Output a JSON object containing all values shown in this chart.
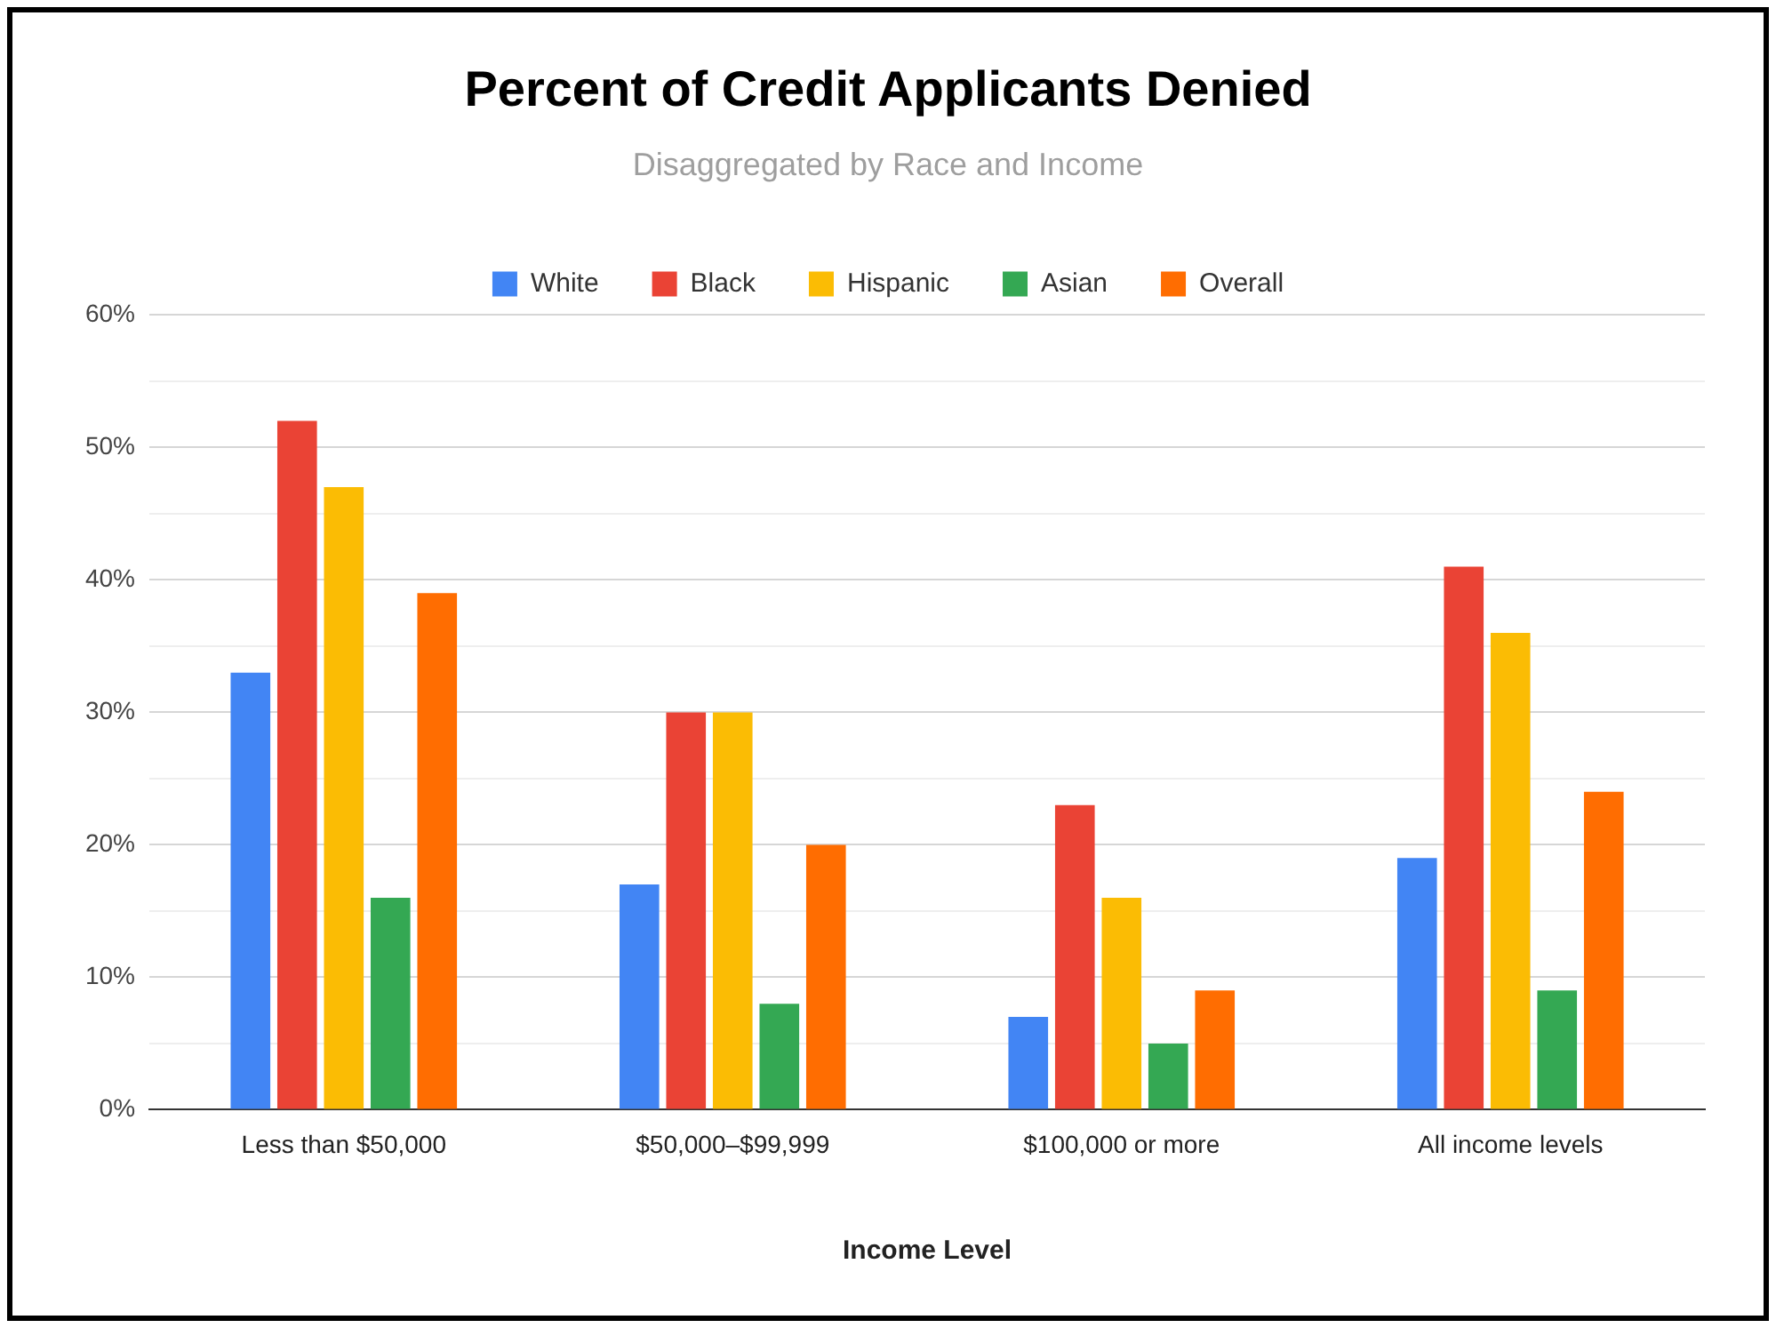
{
  "chart_data": {
    "type": "bar",
    "title": "Percent of Credit Applicants Denied",
    "subtitle": "Disaggregated by Race and Income",
    "xlabel": "Income Level",
    "categories": [
      "Less than $50,000",
      "$50,000–$99,999",
      "$100,000 or more",
      "All income levels"
    ],
    "series": [
      {
        "name": "White",
        "color": "#4285f4",
        "values": [
          33,
          17,
          7,
          19
        ]
      },
      {
        "name": "Black",
        "color": "#ea4335",
        "values": [
          52,
          30,
          23,
          41
        ]
      },
      {
        "name": "Hispanic",
        "color": "#fbbc04",
        "values": [
          47,
          30,
          16,
          36
        ]
      },
      {
        "name": "Asian",
        "color": "#34a853",
        "values": [
          16,
          8,
          5,
          9
        ]
      },
      {
        "name": "Overall",
        "color": "#ff6d01",
        "values": [
          39,
          20,
          9,
          24
        ]
      }
    ],
    "ylim": [
      0,
      60
    ],
    "yticks": [
      {
        "value": 0,
        "label": "0%"
      },
      {
        "value": 5,
        "label": null
      },
      {
        "value": 10,
        "label": "10%"
      },
      {
        "value": 15,
        "label": null
      },
      {
        "value": 20,
        "label": "20%"
      },
      {
        "value": 25,
        "label": null
      },
      {
        "value": 30,
        "label": "30%"
      },
      {
        "value": 35,
        "label": null
      },
      {
        "value": 40,
        "label": "40%"
      },
      {
        "value": 45,
        "label": null
      },
      {
        "value": 50,
        "label": "50%"
      },
      {
        "value": 55,
        "label": null
      },
      {
        "value": 60,
        "label": "60%"
      }
    ],
    "grid": "y",
    "legend": "top"
  }
}
